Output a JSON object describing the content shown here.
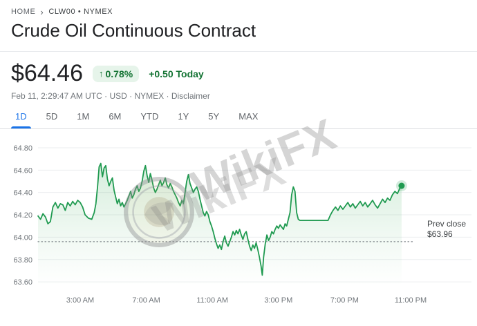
{
  "breadcrumb": {
    "home": "HOME",
    "separator": "›",
    "ticker": "CLW00 • NYMEX"
  },
  "header": {
    "title": "Crude Oil Continuous Contract"
  },
  "quote": {
    "price": "$64.46",
    "change_arrow": "↑",
    "change_percent": "0.78%",
    "change_amount": "+0.50 Today",
    "meta": "Feb 11, 2:29:47 AM UTC · USD · NYMEX · ",
    "disclaimer": "Disclaimer"
  },
  "tabs": [
    {
      "label": "1D",
      "selected": true
    },
    {
      "label": "5D",
      "selected": false
    },
    {
      "label": "1M",
      "selected": false
    },
    {
      "label": "6M",
      "selected": false
    },
    {
      "label": "YTD",
      "selected": false
    },
    {
      "label": "1Y",
      "selected": false
    },
    {
      "label": "5Y",
      "selected": false
    },
    {
      "label": "MAX",
      "selected": false
    }
  ],
  "watermark": {
    "text": "WikiFX"
  },
  "colors": {
    "positive_green": "#137333",
    "badge_bg": "#e6f4ea",
    "tab_active_blue": "#1a73e8"
  },
  "chart_data": {
    "type": "line",
    "title": "Crude Oil Continuous Contract intraday price",
    "xlabel": "",
    "ylabel": "",
    "x_unit": "hour-of-day",
    "x_domain": [
      0.45,
      23.25
    ],
    "y_domain": [
      63.57,
      64.88
    ],
    "grid": true,
    "legend": "none",
    "colors": {
      "line": "#1f9a50"
    },
    "y_ticks": [
      {
        "value": 64.8,
        "label": "64.80"
      },
      {
        "value": 64.6,
        "label": "64.60"
      },
      {
        "value": 64.4,
        "label": "64.40"
      },
      {
        "value": 64.2,
        "label": "64.20"
      },
      {
        "value": 64.0,
        "label": "64.00"
      },
      {
        "value": 63.8,
        "label": "63.80"
      },
      {
        "value": 63.6,
        "label": "63.60"
      }
    ],
    "x_ticks": [
      {
        "t": 3,
        "label": "3:00 AM"
      },
      {
        "t": 7,
        "label": "7:00 AM"
      },
      {
        "t": 11,
        "label": "11:00 AM"
      },
      {
        "t": 15,
        "label": "3:00 PM"
      },
      {
        "t": 19,
        "label": "7:00 PM"
      },
      {
        "t": 23,
        "label": "11:00 PM"
      }
    ],
    "prev_close": {
      "label": "Prev close",
      "price_label": "$63.96",
      "value": 63.96
    },
    "latest": {
      "t": 22.45,
      "value": 64.46
    },
    "points": [
      [
        0.45,
        64.19
      ],
      [
        0.6,
        64.16
      ],
      [
        0.75,
        64.21
      ],
      [
        0.9,
        64.18
      ],
      [
        1.05,
        64.12
      ],
      [
        1.2,
        64.14
      ],
      [
        1.35,
        64.27
      ],
      [
        1.5,
        64.31
      ],
      [
        1.65,
        64.26
      ],
      [
        1.8,
        64.3
      ],
      [
        1.95,
        64.29
      ],
      [
        2.1,
        64.24
      ],
      [
        2.25,
        64.31
      ],
      [
        2.4,
        64.28
      ],
      [
        2.55,
        64.32
      ],
      [
        2.7,
        64.29
      ],
      [
        2.85,
        64.33
      ],
      [
        3.0,
        64.31
      ],
      [
        3.15,
        64.27
      ],
      [
        3.3,
        64.2
      ],
      [
        3.5,
        64.17
      ],
      [
        3.7,
        64.16
      ],
      [
        3.85,
        64.22
      ],
      [
        3.95,
        64.3
      ],
      [
        4.05,
        64.45
      ],
      [
        4.15,
        64.63
      ],
      [
        4.25,
        64.66
      ],
      [
        4.35,
        64.54
      ],
      [
        4.45,
        64.62
      ],
      [
        4.55,
        64.64
      ],
      [
        4.65,
        64.52
      ],
      [
        4.75,
        64.46
      ],
      [
        4.85,
        64.5
      ],
      [
        4.95,
        64.53
      ],
      [
        5.05,
        64.42
      ],
      [
        5.15,
        64.36
      ],
      [
        5.25,
        64.3
      ],
      [
        5.35,
        64.34
      ],
      [
        5.45,
        64.28
      ],
      [
        5.55,
        64.31
      ],
      [
        5.65,
        64.27
      ],
      [
        5.75,
        64.3
      ],
      [
        5.85,
        64.33
      ],
      [
        5.95,
        64.37
      ],
      [
        6.05,
        64.41
      ],
      [
        6.15,
        64.35
      ],
      [
        6.25,
        64.38
      ],
      [
        6.35,
        64.43
      ],
      [
        6.45,
        64.46
      ],
      [
        6.55,
        64.41
      ],
      [
        6.65,
        64.44
      ],
      [
        6.75,
        64.5
      ],
      [
        6.85,
        64.59
      ],
      [
        6.95,
        64.64
      ],
      [
        7.05,
        64.55
      ],
      [
        7.15,
        64.49
      ],
      [
        7.25,
        64.57
      ],
      [
        7.35,
        64.51
      ],
      [
        7.45,
        64.44
      ],
      [
        7.55,
        64.4
      ],
      [
        7.65,
        64.43
      ],
      [
        7.75,
        64.47
      ],
      [
        7.85,
        64.51
      ],
      [
        7.95,
        64.46
      ],
      [
        8.05,
        64.49
      ],
      [
        8.15,
        64.53
      ],
      [
        8.25,
        64.47
      ],
      [
        8.35,
        64.44
      ],
      [
        8.45,
        64.48
      ],
      [
        8.55,
        64.45
      ],
      [
        8.65,
        64.41
      ],
      [
        8.75,
        64.38
      ],
      [
        8.85,
        64.35
      ],
      [
        8.95,
        64.31
      ],
      [
        9.05,
        64.28
      ],
      [
        9.15,
        64.33
      ],
      [
        9.25,
        64.3
      ],
      [
        9.35,
        64.4
      ],
      [
        9.45,
        64.5
      ],
      [
        9.55,
        64.56
      ],
      [
        9.65,
        64.48
      ],
      [
        9.75,
        64.44
      ],
      [
        9.85,
        64.4
      ],
      [
        9.95,
        64.43
      ],
      [
        10.05,
        64.45
      ],
      [
        10.15,
        64.41
      ],
      [
        10.25,
        64.34
      ],
      [
        10.35,
        64.28
      ],
      [
        10.45,
        64.22
      ],
      [
        10.55,
        64.19
      ],
      [
        10.65,
        64.23
      ],
      [
        10.75,
        64.2
      ],
      [
        10.85,
        64.14
      ],
      [
        10.95,
        64.1
      ],
      [
        11.05,
        64.05
      ],
      [
        11.15,
        63.99
      ],
      [
        11.25,
        63.94
      ],
      [
        11.35,
        63.9
      ],
      [
        11.45,
        63.93
      ],
      [
        11.55,
        63.89
      ],
      [
        11.65,
        63.96
      ],
      [
        11.75,
        64.01
      ],
      [
        11.85,
        63.95
      ],
      [
        11.95,
        63.92
      ],
      [
        12.05,
        63.96
      ],
      [
        12.15,
        64.0
      ],
      [
        12.25,
        64.05
      ],
      [
        12.35,
        64.02
      ],
      [
        12.45,
        64.06
      ],
      [
        12.55,
        64.03
      ],
      [
        12.65,
        64.07
      ],
      [
        12.75,
        64.02
      ],
      [
        12.85,
        63.98
      ],
      [
        12.95,
        64.03
      ],
      [
        13.05,
        64.05
      ],
      [
        13.15,
        63.98
      ],
      [
        13.25,
        63.92
      ],
      [
        13.35,
        63.88
      ],
      [
        13.45,
        63.93
      ],
      [
        13.55,
        63.9
      ],
      [
        13.65,
        63.95
      ],
      [
        13.75,
        63.89
      ],
      [
        13.85,
        63.82
      ],
      [
        13.95,
        63.74
      ],
      [
        14.02,
        63.66
      ],
      [
        14.1,
        63.82
      ],
      [
        14.2,
        63.94
      ],
      [
        14.3,
        64.02
      ],
      [
        14.4,
        63.97
      ],
      [
        14.5,
        64.0
      ],
      [
        14.6,
        64.05
      ],
      [
        14.7,
        64.03
      ],
      [
        14.8,
        64.07
      ],
      [
        14.9,
        64.1
      ],
      [
        15.0,
        64.08
      ],
      [
        15.1,
        64.11
      ],
      [
        15.2,
        64.09
      ],
      [
        15.3,
        64.07
      ],
      [
        15.4,
        64.12
      ],
      [
        15.5,
        64.1
      ],
      [
        15.6,
        64.16
      ],
      [
        15.7,
        64.22
      ],
      [
        15.8,
        64.38
      ],
      [
        15.9,
        64.45
      ],
      [
        16.0,
        64.41
      ],
      [
        16.1,
        64.22
      ],
      [
        16.2,
        64.16
      ],
      [
        16.3,
        64.15
      ],
      [
        18.0,
        64.15
      ],
      [
        18.15,
        64.2
      ],
      [
        18.3,
        64.24
      ],
      [
        18.45,
        64.27
      ],
      [
        18.6,
        64.24
      ],
      [
        18.75,
        64.28
      ],
      [
        18.9,
        64.25
      ],
      [
        19.05,
        64.28
      ],
      [
        19.2,
        64.31
      ],
      [
        19.35,
        64.27
      ],
      [
        19.5,
        64.3
      ],
      [
        19.65,
        64.26
      ],
      [
        19.8,
        64.29
      ],
      [
        19.95,
        64.32
      ],
      [
        20.1,
        64.28
      ],
      [
        20.25,
        64.31
      ],
      [
        20.4,
        64.27
      ],
      [
        20.55,
        64.3
      ],
      [
        20.7,
        64.33
      ],
      [
        20.85,
        64.29
      ],
      [
        21.0,
        64.26
      ],
      [
        21.15,
        64.3
      ],
      [
        21.3,
        64.34
      ],
      [
        21.45,
        64.31
      ],
      [
        21.6,
        64.35
      ],
      [
        21.75,
        64.33
      ],
      [
        21.9,
        64.38
      ],
      [
        22.05,
        64.41
      ],
      [
        22.2,
        64.39
      ],
      [
        22.35,
        64.44
      ],
      [
        22.45,
        64.46
      ]
    ]
  }
}
